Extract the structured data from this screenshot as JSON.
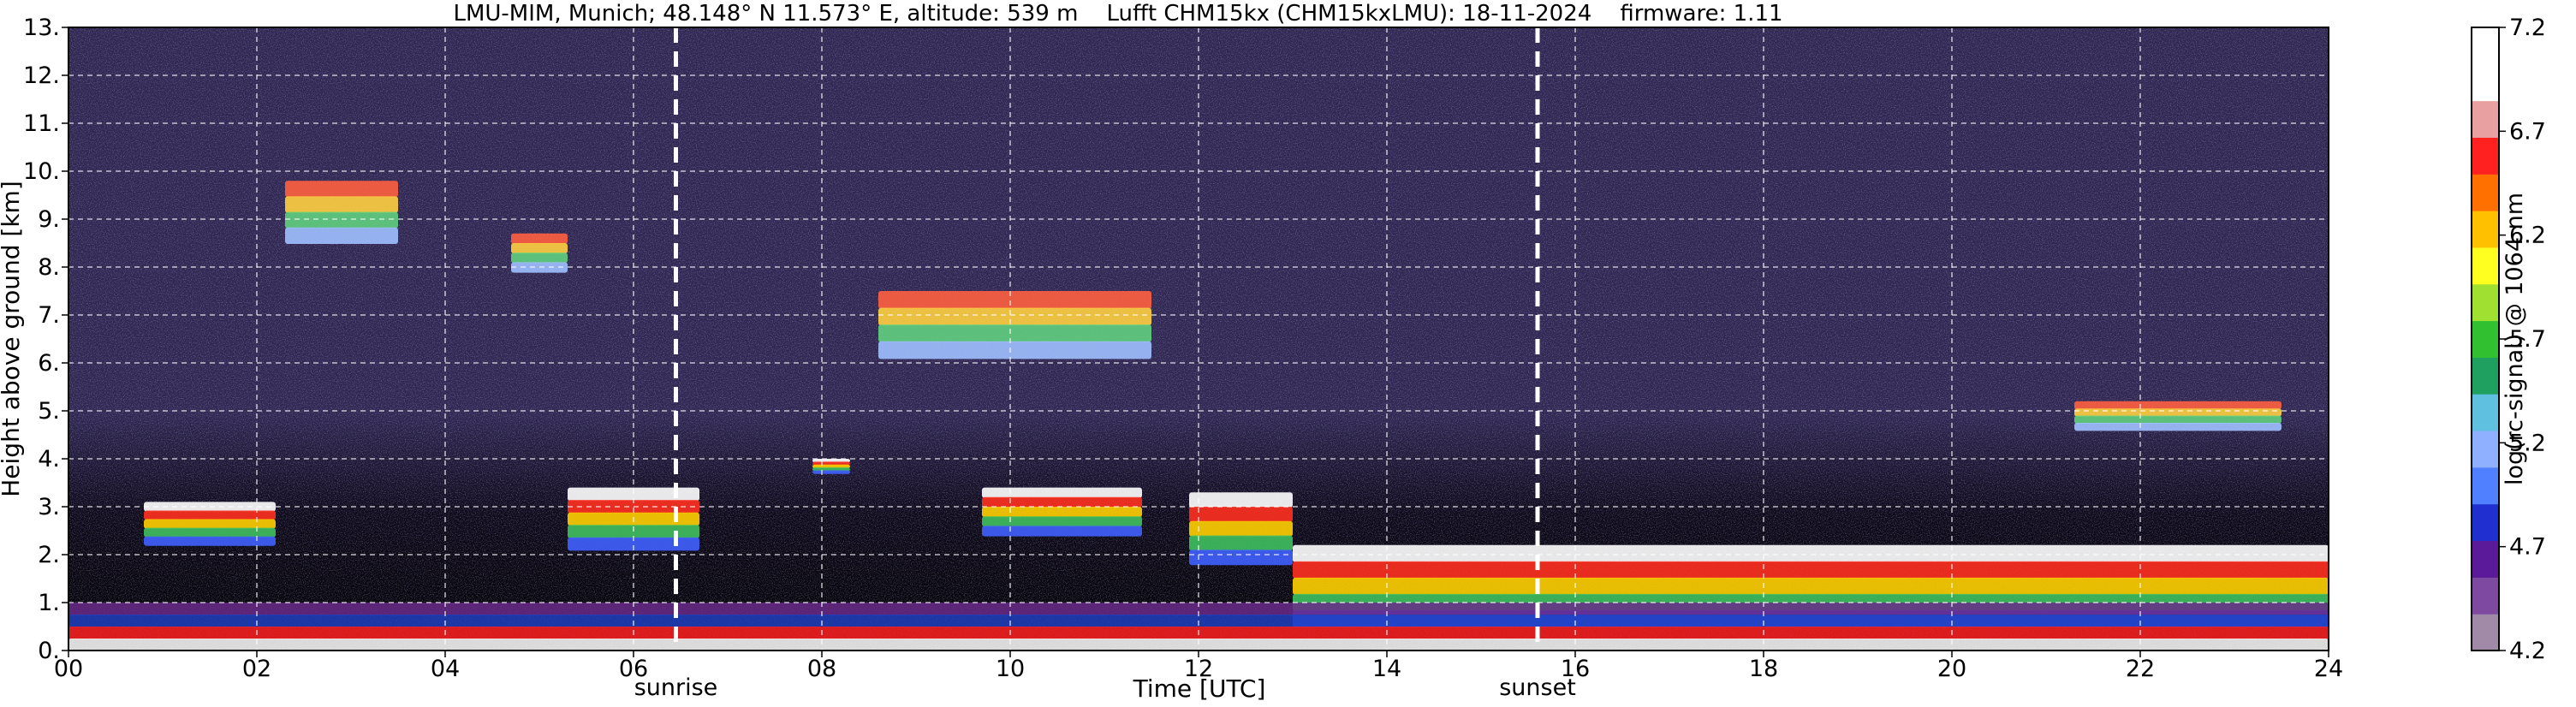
{
  "title": "LMU-MIM, Munich; 48.148° N 11.573° E, altitude: 539 m    Lufft CHM15kx (CHM15kxLMU): 18-11-2024    firmware: 1.11",
  "chart_data": {
    "type": "heatmap",
    "title": "LMU-MIM, Munich; 48.148° N 11.573° E, altitude: 539 m    Lufft CHM15kx (CHM15kxLMU): 18-11-2024    firmware: 1.11",
    "xlabel": "Time [UTC]",
    "ylabel": "Height above ground [km]",
    "xlim": [
      0,
      24
    ],
    "ylim": [
      0,
      13
    ],
    "x_ticks": [
      "00",
      "02",
      "04",
      "06",
      "08",
      "10",
      "12",
      "14",
      "16",
      "18",
      "20",
      "22",
      "24"
    ],
    "y_ticks": [
      "0.",
      "1.",
      "2.",
      "3.",
      "4.",
      "5.",
      "6.",
      "7.",
      "8.",
      "9.",
      "10.",
      "11.",
      "12.",
      "13."
    ],
    "grid": true,
    "annotations": [
      {
        "label": "sunrise",
        "time": 6.45
      },
      {
        "label": "sunset",
        "time": 15.6
      }
    ],
    "colorbar": {
      "label": "log(rc-signal) @ 1064 nm",
      "range": [
        4.2,
        7.2
      ],
      "ticks": [
        "4.2",
        "4.7",
        "5.2",
        "5.7",
        "6.2",
        "6.7",
        "7.2"
      ]
    },
    "features": [
      {
        "kind": "cloud",
        "t_start": 0.8,
        "t_end": 2.2,
        "h_low": 2.2,
        "h_high": 3.1
      },
      {
        "kind": "cloud",
        "t_start": 5.3,
        "t_end": 6.7,
        "h_low": 2.1,
        "h_high": 3.4
      },
      {
        "kind": "cloud",
        "t_start": 7.9,
        "t_end": 8.3,
        "h_low": 3.7,
        "h_high": 4.0
      },
      {
        "kind": "cloud",
        "t_start": 9.7,
        "t_end": 11.4,
        "h_low": 2.4,
        "h_high": 3.4
      },
      {
        "kind": "cloud",
        "t_start": 11.9,
        "t_end": 13.0,
        "h_low": 1.8,
        "h_high": 3.3
      },
      {
        "kind": "cloud",
        "t_start": 13.0,
        "t_end": 24.0,
        "h_low": 0.5,
        "h_high": 2.2
      },
      {
        "kind": "cirrus",
        "t_start": 2.3,
        "t_end": 3.5,
        "h_low": 8.5,
        "h_high": 9.8
      },
      {
        "kind": "cirrus",
        "t_start": 4.7,
        "t_end": 5.3,
        "h_low": 7.9,
        "h_high": 8.7
      },
      {
        "kind": "cirrus",
        "t_start": 8.6,
        "t_end": 11.5,
        "h_low": 6.1,
        "h_high": 7.5
      },
      {
        "kind": "cirrus",
        "t_start": 21.3,
        "t_end": 23.5,
        "h_low": 4.6,
        "h_high": 5.2
      },
      {
        "kind": "boundary_layer",
        "t_start": 0.0,
        "t_end": 24.0,
        "h_low": 0.0,
        "h_high": 1.0
      }
    ]
  },
  "colors": {
    "background_noise": "#2e2650",
    "colorbar_stops": [
      "#a08aa8",
      "#7d4aa0",
      "#5a1a9a",
      "#2030d0",
      "#5080ff",
      "#8fb0ff",
      "#60c0e0",
      "#20a060",
      "#30c030",
      "#a0e030",
      "#ffff20",
      "#ffc000",
      "#ff7000",
      "#ff2020",
      "#e8a0a0",
      "#ffffff"
    ]
  }
}
